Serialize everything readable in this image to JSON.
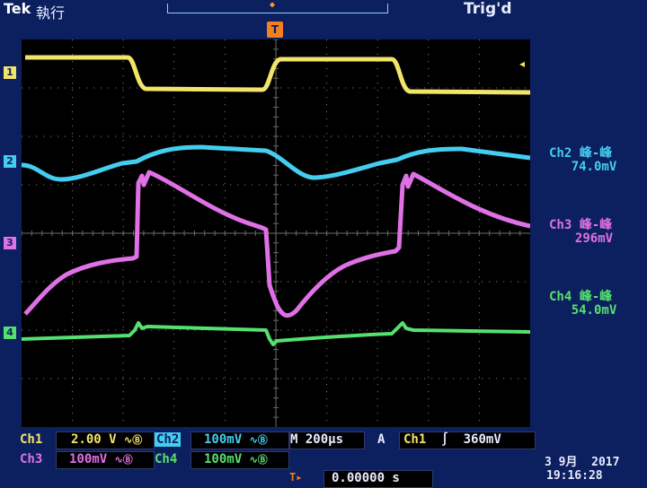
{
  "header": {
    "brand": "Tek",
    "mode": "執行",
    "trigger_status": "Trig'd",
    "trigger_pos_marker": "T"
  },
  "channels": [
    {
      "id": "1",
      "color": "#f2e46a"
    },
    {
      "id": "2",
      "color": "#44cdf0"
    },
    {
      "id": "3",
      "color": "#e070e6"
    },
    {
      "id": "4",
      "color": "#56e070"
    }
  ],
  "measurements": [
    {
      "label": "Ch2 峰-峰",
      "value": "74.0mV",
      "color": "#44cdf0"
    },
    {
      "label": "Ch3 峰-峰",
      "value": "296mV",
      "color": "#e070e6"
    },
    {
      "label": "Ch4 峰-峰",
      "value": "54.0mV",
      "color": "#56e070"
    }
  ],
  "settings": {
    "ch1_label": "Ch1",
    "ch1_scale": "2.00 V",
    "ch2_label": "Ch2",
    "ch2_scale": "100mV",
    "ch3_label": "Ch3",
    "ch3_scale": "100mV",
    "ch4_label": "Ch4",
    "ch4_scale": "100mV",
    "bw_symbol": "∿Ⓑ",
    "timebase": "M 200µs",
    "trigger_mode": "A",
    "trigger_source": "Ch1",
    "trigger_slope": "∫",
    "trigger_level": "360mV",
    "horiz_pos_icon": "T▸",
    "horiz_position": "0.00000 s",
    "date": "3 9月  2017",
    "time": "19:16:28"
  }
}
